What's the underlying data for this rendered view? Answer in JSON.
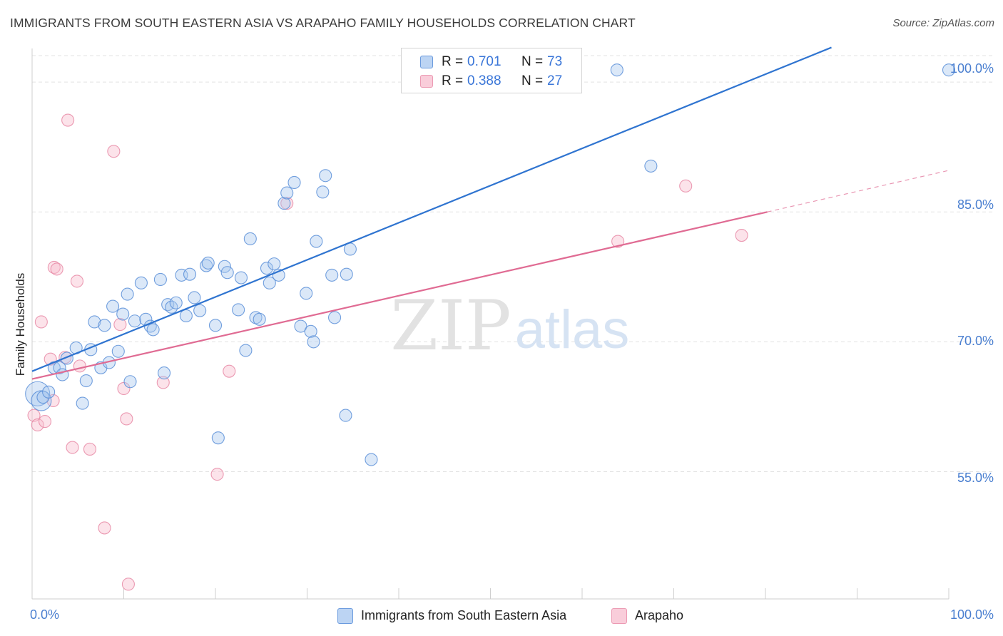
{
  "header": {
    "title": "IMMIGRANTS FROM SOUTH EASTERN ASIA VS ARAPAHO FAMILY HOUSEHOLDS CORRELATION CHART",
    "source": "Source: ZipAtlas.com"
  },
  "watermark": {
    "zip": "ZIP",
    "atlas": "atlas"
  },
  "legend": {
    "rows": [
      {
        "r_label": "R =",
        "r_value": "0.701",
        "n_label": "N =",
        "n_value": "73"
      },
      {
        "r_label": "R =",
        "r_value": "0.388",
        "n_label": "N =",
        "n_value": "27"
      }
    ]
  },
  "bottom_legend": {
    "items": [
      {
        "label": "Immigrants from South Eastern Asia"
      },
      {
        "label": "Arapaho"
      }
    ]
  },
  "colors": {
    "blue_fill": "#a9c8ef",
    "blue_stroke": "#5a8fd8",
    "blue_line": "#2f74d0",
    "pink_fill": "#f7bccd",
    "pink_stroke": "#e88aa6",
    "pink_line": "#e06b93",
    "grid": "#e3e3e3",
    "tick_text": "#4a7fd0"
  },
  "chart_data": {
    "type": "scatter",
    "title": "IMMIGRANTS FROM SOUTH EASTERN ASIA VS ARAPAHO FAMILY HOUSEHOLDS CORRELATION CHART",
    "xlabel": "",
    "ylabel": "Family Households",
    "xlim": [
      0,
      100
    ],
    "ylim": [
      40.3,
      105.2
    ],
    "x_tick_labels": [
      "0.0%",
      "100.0%"
    ],
    "y_ticks": [
      55,
      70,
      85,
      100
    ],
    "y_tick_labels": [
      "55.0%",
      "70.0%",
      "85.0%",
      "100.0%"
    ],
    "grid": "horizontal dashed",
    "legend_position": "top-center",
    "series": [
      {
        "name": "Immigrants from South Eastern Asia",
        "color": "#5a8fd8",
        "r": 0.701,
        "n": 73,
        "trend": {
          "x": [
            0,
            87.2
          ],
          "y": [
            66.6,
            104.0
          ]
        },
        "points": [
          {
            "x": 0.6,
            "y": 64.0,
            "s": "xl"
          },
          {
            "x": 1.0,
            "y": 63.2,
            "s": "l"
          },
          {
            "x": 1.2,
            "y": 63.6,
            "s": "m"
          },
          {
            "x": 1.8,
            "y": 64.2,
            "s": "m"
          },
          {
            "x": 2.4,
            "y": 67.0,
            "s": "m"
          },
          {
            "x": 3.0,
            "y": 67.0,
            "s": "m"
          },
          {
            "x": 3.3,
            "y": 66.2,
            "s": "m"
          },
          {
            "x": 3.8,
            "y": 68.1,
            "s": "m"
          },
          {
            "x": 4.8,
            "y": 69.3,
            "s": "m"
          },
          {
            "x": 5.5,
            "y": 62.9,
            "s": "m"
          },
          {
            "x": 5.9,
            "y": 65.5,
            "s": "m"
          },
          {
            "x": 6.4,
            "y": 69.1,
            "s": "m"
          },
          {
            "x": 6.8,
            "y": 72.3,
            "s": "m"
          },
          {
            "x": 7.5,
            "y": 67.0,
            "s": "m"
          },
          {
            "x": 7.9,
            "y": 71.9,
            "s": "m"
          },
          {
            "x": 8.4,
            "y": 67.6,
            "s": "m"
          },
          {
            "x": 8.8,
            "y": 74.1,
            "s": "m"
          },
          {
            "x": 9.4,
            "y": 68.9,
            "s": "m"
          },
          {
            "x": 9.9,
            "y": 73.2,
            "s": "m"
          },
          {
            "x": 10.4,
            "y": 75.5,
            "s": "m"
          },
          {
            "x": 10.7,
            "y": 65.4,
            "s": "m"
          },
          {
            "x": 11.2,
            "y": 72.4,
            "s": "m"
          },
          {
            "x": 11.9,
            "y": 76.8,
            "s": "m"
          },
          {
            "x": 12.4,
            "y": 72.6,
            "s": "m"
          },
          {
            "x": 12.9,
            "y": 71.8,
            "s": "m"
          },
          {
            "x": 13.2,
            "y": 71.4,
            "s": "m"
          },
          {
            "x": 14.0,
            "y": 77.2,
            "s": "m"
          },
          {
            "x": 14.4,
            "y": 66.4,
            "s": "m"
          },
          {
            "x": 14.8,
            "y": 74.3,
            "s": "m"
          },
          {
            "x": 15.2,
            "y": 74.0,
            "s": "m"
          },
          {
            "x": 15.7,
            "y": 74.5,
            "s": "m"
          },
          {
            "x": 16.3,
            "y": 77.7,
            "s": "m"
          },
          {
            "x": 16.8,
            "y": 73.0,
            "s": "m"
          },
          {
            "x": 17.2,
            "y": 77.8,
            "s": "m"
          },
          {
            "x": 17.7,
            "y": 75.1,
            "s": "m"
          },
          {
            "x": 18.3,
            "y": 73.6,
            "s": "m"
          },
          {
            "x": 19.0,
            "y": 78.8,
            "s": "m"
          },
          {
            "x": 19.2,
            "y": 79.1,
            "s": "m"
          },
          {
            "x": 20.0,
            "y": 71.9,
            "s": "m"
          },
          {
            "x": 20.3,
            "y": 58.9,
            "s": "m"
          },
          {
            "x": 21.0,
            "y": 78.7,
            "s": "m"
          },
          {
            "x": 21.3,
            "y": 78.0,
            "s": "m"
          },
          {
            "x": 22.5,
            "y": 73.7,
            "s": "m"
          },
          {
            "x": 22.8,
            "y": 77.4,
            "s": "m"
          },
          {
            "x": 23.3,
            "y": 69.0,
            "s": "m"
          },
          {
            "x": 23.8,
            "y": 81.9,
            "s": "m"
          },
          {
            "x": 24.4,
            "y": 72.8,
            "s": "m"
          },
          {
            "x": 24.8,
            "y": 72.6,
            "s": "m"
          },
          {
            "x": 25.6,
            "y": 78.5,
            "s": "m"
          },
          {
            "x": 25.9,
            "y": 76.8,
            "s": "m"
          },
          {
            "x": 26.4,
            "y": 79.0,
            "s": "m"
          },
          {
            "x": 26.9,
            "y": 77.7,
            "s": "m"
          },
          {
            "x": 27.5,
            "y": 86.0,
            "s": "m"
          },
          {
            "x": 27.8,
            "y": 87.2,
            "s": "m"
          },
          {
            "x": 28.6,
            "y": 88.4,
            "s": "m"
          },
          {
            "x": 29.3,
            "y": 71.8,
            "s": "m"
          },
          {
            "x": 29.9,
            "y": 75.6,
            "s": "m"
          },
          {
            "x": 30.4,
            "y": 71.2,
            "s": "m"
          },
          {
            "x": 30.7,
            "y": 70.0,
            "s": "m"
          },
          {
            "x": 31.0,
            "y": 81.6,
            "s": "m"
          },
          {
            "x": 31.7,
            "y": 87.3,
            "s": "m"
          },
          {
            "x": 32.0,
            "y": 89.2,
            "s": "m"
          },
          {
            "x": 32.7,
            "y": 77.7,
            "s": "m"
          },
          {
            "x": 33.0,
            "y": 72.8,
            "s": "m"
          },
          {
            "x": 34.2,
            "y": 61.5,
            "s": "m"
          },
          {
            "x": 34.3,
            "y": 77.8,
            "s": "m"
          },
          {
            "x": 34.7,
            "y": 80.7,
            "s": "m"
          },
          {
            "x": 37.0,
            "y": 56.4,
            "s": "m"
          },
          {
            "x": 63.8,
            "y": 101.4,
            "s": "m"
          },
          {
            "x": 67.5,
            "y": 90.3,
            "s": "m"
          },
          {
            "x": 100.0,
            "y": 101.4,
            "s": "m"
          }
        ]
      },
      {
        "name": "Arapaho",
        "color": "#e88aa6",
        "r": 0.388,
        "n": 27,
        "trend": {
          "x": [
            0,
            80.2
          ],
          "y": [
            65.7,
            85.0
          ]
        },
        "trend_extension": {
          "x": [
            80.2,
            100
          ],
          "y": [
            85.0,
            89.8
          ]
        },
        "points": [
          {
            "x": 0.2,
            "y": 61.5,
            "s": "m"
          },
          {
            "x": 0.6,
            "y": 60.4,
            "s": "m"
          },
          {
            "x": 1.0,
            "y": 72.3,
            "s": "m"
          },
          {
            "x": 1.4,
            "y": 60.8,
            "s": "m"
          },
          {
            "x": 2.0,
            "y": 68.0,
            "s": "m"
          },
          {
            "x": 2.3,
            "y": 63.2,
            "s": "m"
          },
          {
            "x": 2.4,
            "y": 78.6,
            "s": "m"
          },
          {
            "x": 2.7,
            "y": 78.4,
            "s": "m"
          },
          {
            "x": 3.6,
            "y": 68.2,
            "s": "m"
          },
          {
            "x": 3.9,
            "y": 95.6,
            "s": "m"
          },
          {
            "x": 4.4,
            "y": 57.8,
            "s": "m"
          },
          {
            "x": 4.9,
            "y": 77.0,
            "s": "m"
          },
          {
            "x": 5.2,
            "y": 67.2,
            "s": "m"
          },
          {
            "x": 6.3,
            "y": 57.6,
            "s": "m"
          },
          {
            "x": 7.9,
            "y": 48.5,
            "s": "m"
          },
          {
            "x": 8.9,
            "y": 92.0,
            "s": "m"
          },
          {
            "x": 9.6,
            "y": 72.0,
            "s": "m"
          },
          {
            "x": 10.0,
            "y": 64.6,
            "s": "m"
          },
          {
            "x": 10.3,
            "y": 61.1,
            "s": "m"
          },
          {
            "x": 10.5,
            "y": 42.0,
            "s": "m"
          },
          {
            "x": 14.3,
            "y": 65.3,
            "s": "m"
          },
          {
            "x": 20.2,
            "y": 54.7,
            "s": "m"
          },
          {
            "x": 21.5,
            "y": 66.6,
            "s": "m"
          },
          {
            "x": 27.8,
            "y": 86.0,
            "s": "m"
          },
          {
            "x": 63.9,
            "y": 81.6,
            "s": "m"
          },
          {
            "x": 71.3,
            "y": 88.0,
            "s": "m"
          },
          {
            "x": 77.4,
            "y": 82.3,
            "s": "m"
          }
        ]
      }
    ]
  }
}
